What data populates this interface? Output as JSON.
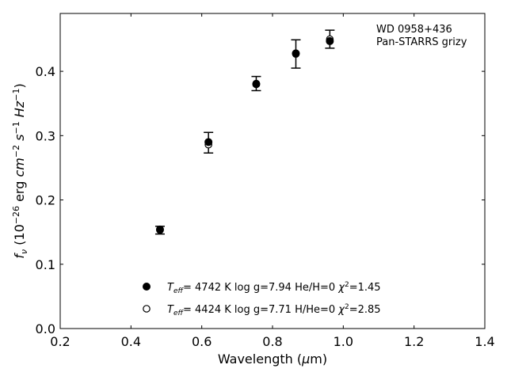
{
  "chart_data": {
    "type": "scatter",
    "xlabel": "Wavelength (μm)",
    "ylabel": "f_ν (10^-26 erg cm^-2 s^-1 Hz^-1)",
    "xlim": [
      0.2,
      1.4
    ],
    "ylim": [
      0.0,
      0.49
    ],
    "x_ticks": [
      0.2,
      0.4,
      0.6,
      0.8,
      1.0,
      1.2,
      1.4
    ],
    "x_tick_labels": [
      "0.2",
      "0.4",
      "0.6",
      "0.8",
      "1.0",
      "1.2",
      "1.4"
    ],
    "y_ticks": [
      0.0,
      0.1,
      0.2,
      0.3,
      0.4
    ],
    "y_tick_labels": [
      "0.0",
      "0.1",
      "0.2",
      "0.3",
      "0.4"
    ],
    "grid": false,
    "annotation": [
      "WD 0958+436",
      "Pan-STARRS grizy"
    ],
    "legend_position": "bottom-center",
    "observed": {
      "x": [
        0.482,
        0.619,
        0.754,
        0.866,
        0.962
      ],
      "y": [
        0.153,
        0.289,
        0.381,
        0.427,
        0.45
      ],
      "err": [
        0.006,
        0.016,
        0.011,
        0.022,
        0.014
      ]
    },
    "series": [
      {
        "name": "T_eff= 4742 K log g=7.94 He/H=0 χ²=1.45",
        "legend": {
          "tname": "T",
          "tsub": "eff",
          "tvalue": "= 4742 K  log g=7.94  He/H=0  ",
          "chi": "χ",
          "chisup": "2",
          "chivalue": "=1.45"
        },
        "marker": "filled-circle",
        "x": [
          0.482,
          0.619,
          0.754,
          0.866,
          0.962
        ],
        "y": [
          0.154,
          0.29,
          0.38,
          0.428,
          0.447
        ]
      },
      {
        "name": "T_eff= 4424 K log g=7.71 H/He=0 χ²=2.85",
        "legend": {
          "tname": "T",
          "tsub": "eff",
          "tvalue": "= 4424 K  log g=7.71  H/He=0  ",
          "chi": "χ",
          "chisup": "2",
          "chivalue": "=2.85"
        },
        "marker": "open-circle",
        "x": [
          0.482,
          0.619,
          0.754,
          0.866,
          0.962
        ],
        "y": [
          0.153,
          0.286,
          0.381,
          0.427,
          0.45
        ]
      }
    ]
  }
}
